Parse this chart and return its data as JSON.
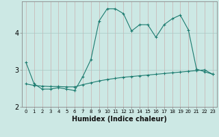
{
  "xlabel": "Humidex (Indice chaleur)",
  "bg_color": "#cce8e4",
  "line_color": "#1a7a6e",
  "x_values": [
    0,
    1,
    2,
    3,
    4,
    5,
    6,
    7,
    8,
    9,
    10,
    11,
    12,
    13,
    14,
    15,
    16,
    17,
    18,
    19,
    20,
    21,
    22,
    23
  ],
  "line1_y": [
    3.2,
    2.62,
    2.48,
    2.48,
    2.52,
    2.48,
    2.44,
    2.82,
    3.28,
    4.32,
    4.65,
    4.65,
    4.52,
    4.05,
    4.22,
    4.22,
    3.88,
    4.22,
    4.38,
    4.48,
    4.08,
    3.02,
    2.95,
    2.88
  ],
  "line2_y": [
    2.62,
    2.58,
    2.56,
    2.55,
    2.55,
    2.54,
    2.54,
    2.6,
    2.65,
    2.7,
    2.74,
    2.77,
    2.8,
    2.82,
    2.84,
    2.86,
    2.88,
    2.9,
    2.92,
    2.94,
    2.96,
    2.98,
    3.0,
    2.88
  ],
  "ylim": [
    2.0,
    4.85
  ],
  "xlim": [
    -0.5,
    23.5
  ],
  "yticks": [
    2,
    3,
    4
  ],
  "xticks": [
    0,
    1,
    2,
    3,
    4,
    5,
    6,
    7,
    8,
    9,
    10,
    11,
    12,
    13,
    14,
    15,
    16,
    17,
    18,
    19,
    20,
    21,
    22,
    23
  ],
  "xlabel_fontsize": 7,
  "ytick_fontsize": 7,
  "xtick_fontsize": 5
}
